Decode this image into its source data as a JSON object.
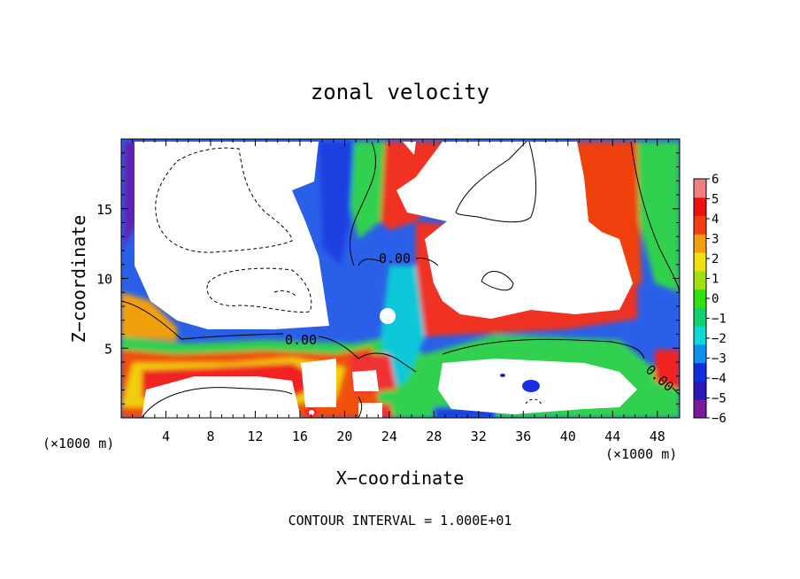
{
  "chart_data": {
    "type": "heatmap",
    "title": "zonal velocity",
    "xlabel": "X−coordinate",
    "ylabel": "Z−coordinate",
    "x_unit_left": "(×1000 m)",
    "x_unit_right": "(×1000 m)",
    "xlim": [
      0,
      50
    ],
    "ylim": [
      0,
      20
    ],
    "xticks": [
      4,
      8,
      12,
      16,
      20,
      24,
      28,
      32,
      36,
      40,
      44,
      48
    ],
    "yticks": [
      5,
      10,
      15
    ],
    "x_tick_labels": [
      "4",
      "8",
      "12",
      "16",
      "20",
      "24",
      "28",
      "32",
      "36",
      "40",
      "44",
      "48"
    ],
    "y_tick_labels": [
      "5",
      "10",
      "15"
    ],
    "colorbar": {
      "min": -6,
      "max": 6,
      "ticks": [
        6,
        5,
        4,
        3,
        2,
        1,
        0,
        -1,
        -2,
        -3,
        -4,
        -5,
        -6
      ],
      "tick_labels": [
        "6",
        "5",
        "4",
        "3",
        "2",
        "1",
        "0",
        "−1",
        "−2",
        "−3",
        "−4",
        "−5",
        "−6"
      ],
      "colors": [
        "#7a1a9a",
        "#2b1ab8",
        "#1030e0",
        "#1090f0",
        "#10d8d8",
        "#10d070",
        "#30e010",
        "#a0e010",
        "#f0e010",
        "#f0a010",
        "#f04010",
        "#f01010",
        "#f08080"
      ]
    },
    "contour_labels": [
      {
        "text": "0.00",
        "x": 23.8,
        "z": 11.3
      },
      {
        "text": "0.00",
        "x": 15.1,
        "z": 5.6
      },
      {
        "text": "0.00",
        "x": 47.1,
        "z": 2.7
      }
    ],
    "footer": "CONTOUR INTERVAL = 1.000E+01"
  }
}
